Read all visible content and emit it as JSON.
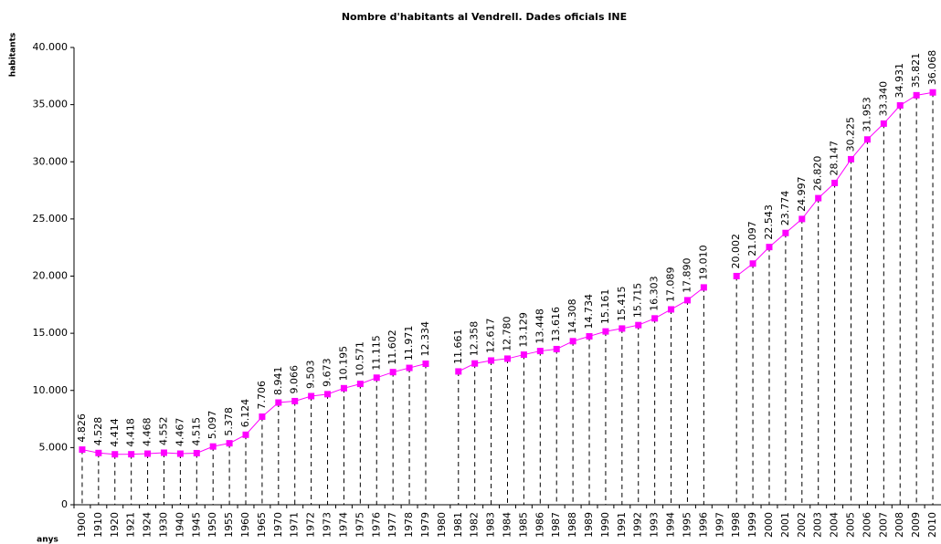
{
  "chart_data": {
    "type": "line",
    "title": "Nombre d'habitants al Vendrell. Dades oficials INE",
    "ylabel": "habitants",
    "xlabel": "anys",
    "categories": [
      "1900",
      "1910",
      "1920",
      "1921",
      "1924",
      "1930",
      "1940",
      "1945",
      "1950",
      "1955",
      "1960",
      "1965",
      "1970",
      "1971",
      "1972",
      "1973",
      "1974",
      "1975",
      "1976",
      "1977",
      "1978",
      "1979",
      "1980",
      "1981",
      "1982",
      "1983",
      "1984",
      "1985",
      "1986",
      "1987",
      "1988",
      "1989",
      "1990",
      "1991",
      "1992",
      "1993",
      "1994",
      "1995",
      "1996",
      "1997",
      "1998",
      "1999",
      "2000",
      "2001",
      "2002",
      "2003",
      "2004",
      "2005",
      "2006",
      "2007",
      "2008",
      "2009",
      "2010"
    ],
    "series": [
      {
        "name": "habitants",
        "color": "#ff00ff",
        "values": [
          4826,
          4528,
          4414,
          4418,
          4468,
          4552,
          4467,
          4515,
          5097,
          5378,
          6124,
          7706,
          8941,
          9066,
          9503,
          9673,
          10195,
          10571,
          11115,
          11602,
          11971,
          12334,
          null,
          11661,
          12358,
          12617,
          12780,
          13129,
          13448,
          13616,
          14308,
          14734,
          15161,
          15415,
          15715,
          16303,
          17089,
          17890,
          19010,
          null,
          20002,
          21097,
          22543,
          23774,
          24997,
          26820,
          28147,
          30225,
          31953,
          33340,
          34931,
          35821,
          36068
        ],
        "value_labels": [
          "4.826",
          "4.528",
          "4.414",
          "4.418",
          "4.468",
          "4.552",
          "4.467",
          "4.515",
          "5.097",
          "5.378",
          "6.124",
          "7.706",
          "8.941",
          "9.066",
          "9.503",
          "9.673",
          "10.195",
          "10.571",
          "11.115",
          "11.602",
          "11.971",
          "12.334",
          null,
          "11.661",
          "12.358",
          "12.617",
          "12.780",
          "13.129",
          "13.448",
          "13.616",
          "14.308",
          "14.734",
          "15.161",
          "15.415",
          "15.715",
          "16.303",
          "17.089",
          "17.890",
          "19.010",
          null,
          "20.002",
          "21.097",
          "22.543",
          "23.774",
          "24.997",
          "26.820",
          "28.147",
          "30.225",
          "31.953",
          "33.340",
          "34.931",
          "35.821",
          "36.068"
        ]
      }
    ],
    "ylim": [
      0,
      40000
    ],
    "yticks": [
      0,
      {
        "value": 5000,
        "label": "5.000"
      },
      {
        "value": 10000,
        "label": "10.000"
      },
      {
        "value": 15000,
        "label": "15.000"
      },
      {
        "value": 20000,
        "label": "20.000"
      },
      {
        "value": 25000,
        "label": "25.000"
      },
      {
        "value": 30000,
        "label": "30.000"
      },
      {
        "value": 35000,
        "label": "35.000"
      },
      {
        "value": 40000,
        "label": "40.000"
      }
    ],
    "grid": false
  }
}
